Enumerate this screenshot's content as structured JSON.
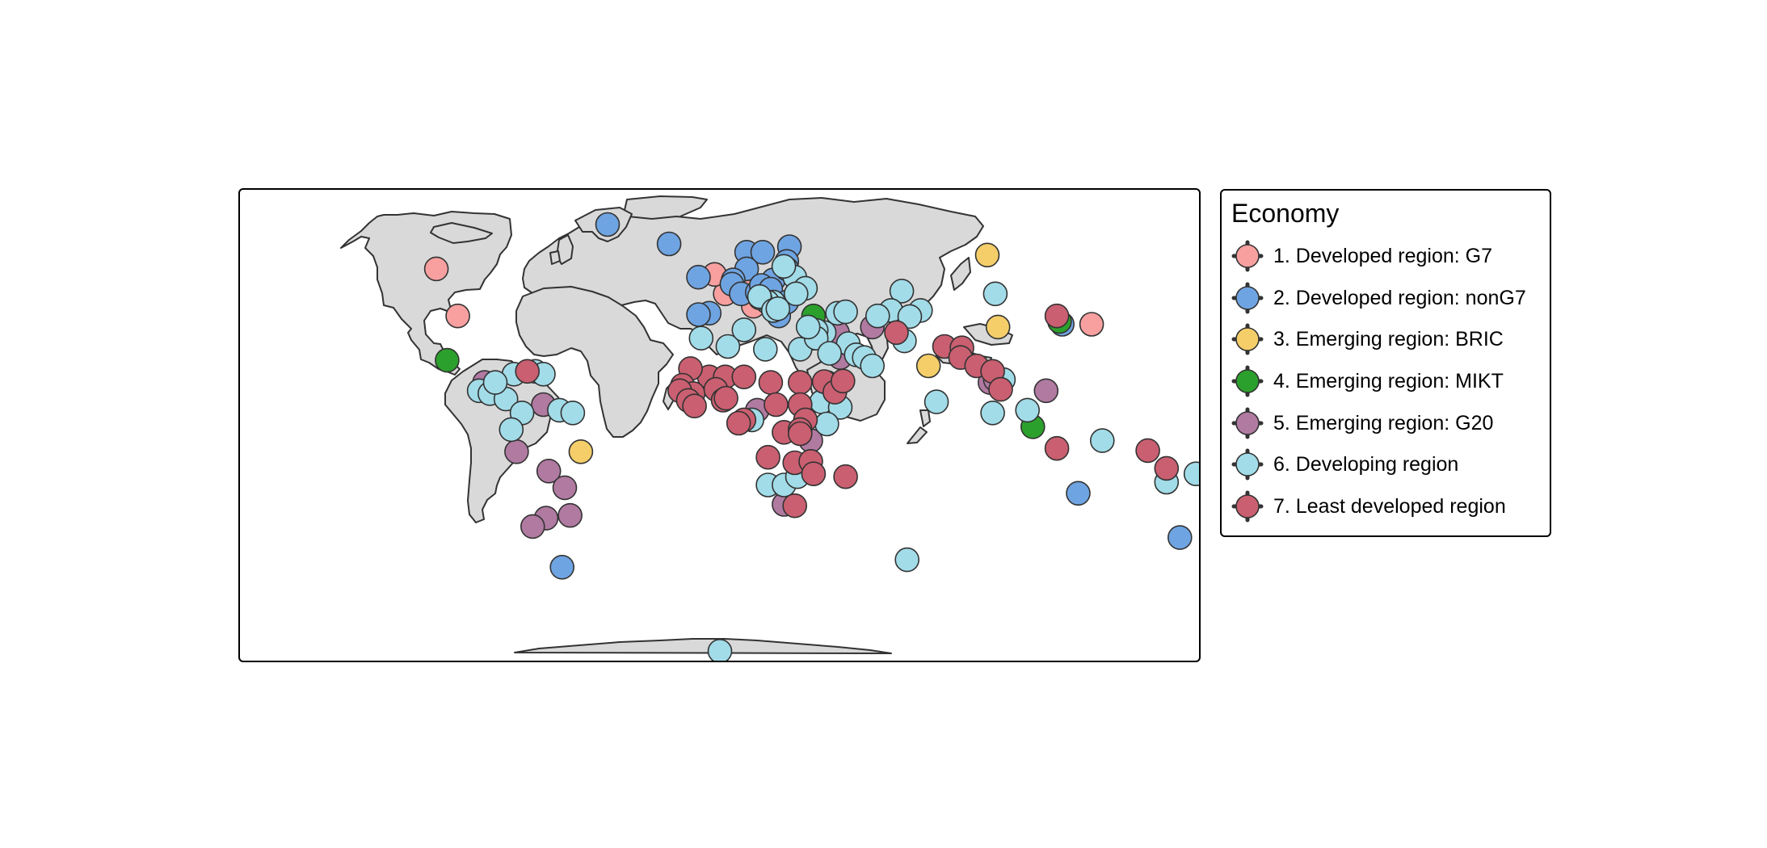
{
  "legend": {
    "title": "Economy",
    "items": [
      {
        "label": "1. Developed region: G7",
        "color": "#F8A0A0"
      },
      {
        "label": "2. Developed region: nonG7",
        "color": "#6FA4E2"
      },
      {
        "label": "3. Emerging region: BRIC",
        "color": "#F5CE6A"
      },
      {
        "label": "4. Emerging region: MIKT",
        "color": "#2CA02C"
      },
      {
        "label": "5. Emerging region: G20",
        "color": "#B07AA1"
      },
      {
        "label": "6. Developing region",
        "color": "#A2DCE8"
      },
      {
        "label": "7. Least developed region",
        "color": "#C95F70"
      }
    ]
  },
  "map_colors": {
    "land": "#D9D9D9",
    "border": "#333333",
    "panel_border": "#000000"
  },
  "points": [
    {
      "lon": -106,
      "lat": 56,
      "economy": 1
    },
    {
      "lon": -98,
      "lat": 39,
      "economy": 1
    },
    {
      "lon": 2,
      "lat": 47,
      "economy": 1
    },
    {
      "lon": 10,
      "lat": 51,
      "economy": 1
    },
    {
      "lon": 12.5,
      "lat": 42.5,
      "economy": 1
    },
    {
      "lon": 139,
      "lat": 36,
      "economy": 1
    },
    {
      "lon": -2,
      "lat": 54,
      "economy": 1
    },
    {
      "lon": -42,
      "lat": 72,
      "economy": 2
    },
    {
      "lon": -19,
      "lat": 65,
      "economy": 2
    },
    {
      "lon": 10,
      "lat": 62,
      "economy": 2
    },
    {
      "lon": 16,
      "lat": 62,
      "economy": 2
    },
    {
      "lon": 26,
      "lat": 64,
      "economy": 2
    },
    {
      "lon": 10,
      "lat": 56,
      "economy": 2
    },
    {
      "lon": -8,
      "lat": 53,
      "economy": 2
    },
    {
      "lon": 5,
      "lat": 52,
      "economy": 2
    },
    {
      "lon": 4.5,
      "lat": 50.5,
      "economy": 2
    },
    {
      "lon": 8,
      "lat": 47,
      "economy": 2
    },
    {
      "lon": 14,
      "lat": 47.5,
      "economy": 2
    },
    {
      "lon": 20,
      "lat": 52,
      "economy": 2
    },
    {
      "lon": 15.5,
      "lat": 50,
      "economy": 2
    },
    {
      "lon": 22,
      "lat": 39,
      "economy": 2
    },
    {
      "lon": -4,
      "lat": 40,
      "economy": 2
    },
    {
      "lon": -8,
      "lat": 39.5,
      "economy": 2
    },
    {
      "lon": 25,
      "lat": 58.7,
      "economy": 2
    },
    {
      "lon": 25,
      "lat": 56,
      "economy": 2
    },
    {
      "lon": 19,
      "lat": 48.7,
      "economy": 2
    },
    {
      "lon": 35,
      "lat": 31,
      "economy": 2
    },
    {
      "lon": 128,
      "lat": 36,
      "economy": 2
    },
    {
      "lon": 134,
      "lat": -25,
      "economy": 2
    },
    {
      "lon": 172,
      "lat": -41,
      "economy": 2
    },
    {
      "lon": -59,
      "lat": -51.7,
      "economy": 2
    },
    {
      "lon": 25,
      "lat": 44,
      "economy": 2
    },
    {
      "lon": 100,
      "lat": 61,
      "economy": 3
    },
    {
      "lon": 104,
      "lat": 35,
      "economy": 3
    },
    {
      "lon": 78,
      "lat": 21,
      "economy": 3
    },
    {
      "lon": -52,
      "lat": -10,
      "economy": 3
    },
    {
      "lon": -102,
      "lat": 23,
      "economy": 4
    },
    {
      "lon": 127,
      "lat": 37,
      "economy": 4
    },
    {
      "lon": 117,
      "lat": -1,
      "economy": 4
    },
    {
      "lon": 35,
      "lat": 39,
      "economy": 4
    },
    {
      "lon": -88,
      "lat": 15,
      "economy": 5
    },
    {
      "lon": -66,
      "lat": 7,
      "economy": 5
    },
    {
      "lon": -76,
      "lat": -10,
      "economy": 5
    },
    {
      "lon": -64,
      "lat": -17,
      "economy": 5
    },
    {
      "lon": -58,
      "lat": -23,
      "economy": 5
    },
    {
      "lon": -65,
      "lat": -34,
      "economy": 5
    },
    {
      "lon": -56,
      "lat": -33,
      "economy": 5
    },
    {
      "lon": -70,
      "lat": -37,
      "economy": 5
    },
    {
      "lon": 45,
      "lat": 24,
      "economy": 5
    },
    {
      "lon": 44,
      "lat": 33,
      "economy": 5
    },
    {
      "lon": 57,
      "lat": 35,
      "economy": 5
    },
    {
      "lon": 101,
      "lat": 15,
      "economy": 5
    },
    {
      "lon": 103,
      "lat": 16,
      "economy": 5
    },
    {
      "lon": 122,
      "lat": 12,
      "economy": 5
    },
    {
      "lon": 34,
      "lat": -6,
      "economy": 5
    },
    {
      "lon": 24,
      "lat": -29,
      "economy": 5
    },
    {
      "lon": 14,
      "lat": 5,
      "economy": 5
    },
    {
      "lon": -90,
      "lat": 12,
      "economy": 6
    },
    {
      "lon": -86,
      "lat": 11,
      "economy": 6
    },
    {
      "lon": -80,
      "lat": 9,
      "economy": 6
    },
    {
      "lon": -74,
      "lat": 4,
      "economy": 6
    },
    {
      "lon": -78,
      "lat": -2,
      "economy": 6
    },
    {
      "lon": -69,
      "lat": 19,
      "economy": 6
    },
    {
      "lon": -60,
      "lat": 5,
      "economy": 6
    },
    {
      "lon": -55,
      "lat": 4,
      "economy": 6
    },
    {
      "lon": -77,
      "lat": 18,
      "economy": 6
    },
    {
      "lon": -66,
      "lat": 18,
      "economy": 6
    },
    {
      "lon": -84,
      "lat": 15,
      "economy": 6
    },
    {
      "lon": 3,
      "lat": 28,
      "economy": 6
    },
    {
      "lon": 9,
      "lat": 34,
      "economy": 6
    },
    {
      "lon": -7,
      "lat": 31,
      "economy": 6
    },
    {
      "lon": 17,
      "lat": 27,
      "economy": 6
    },
    {
      "lon": 30,
      "lat": 27,
      "economy": 6
    },
    {
      "lon": 12,
      "lat": 1.5,
      "economy": 6
    },
    {
      "lon": 38,
      "lat": 8,
      "economy": 6
    },
    {
      "lon": 45,
      "lat": 6,
      "economy": 6
    },
    {
      "lon": 40,
      "lat": 0,
      "economy": 6
    },
    {
      "lon": 18,
      "lat": -22,
      "economy": 6
    },
    {
      "lon": 24,
      "lat": -22,
      "economy": 6
    },
    {
      "lon": 29,
      "lat": -19,
      "economy": 6
    },
    {
      "lon": 40,
      "lat": 15,
      "economy": 6
    },
    {
      "lon": 44,
      "lat": 40,
      "economy": 6
    },
    {
      "lon": 39,
      "lat": 33,
      "economy": 6
    },
    {
      "lon": 36,
      "lat": 33.8,
      "economy": 6
    },
    {
      "lon": 36,
      "lat": 31,
      "economy": 6
    },
    {
      "lon": 48,
      "lat": 29,
      "economy": 6
    },
    {
      "lon": 51,
      "lat": 25,
      "economy": 6
    },
    {
      "lon": 54,
      "lat": 24,
      "economy": 6
    },
    {
      "lon": 57,
      "lat": 21,
      "economy": 6
    },
    {
      "lon": 68,
      "lat": 48,
      "economy": 6
    },
    {
      "lon": 64,
      "lat": 41,
      "economy": 6
    },
    {
      "lon": 59,
      "lat": 39,
      "economy": 6
    },
    {
      "lon": 75,
      "lat": 41,
      "economy": 6
    },
    {
      "lon": 71,
      "lat": 38.8,
      "economy": 6
    },
    {
      "lon": 69,
      "lat": 30,
      "economy": 6
    },
    {
      "lon": 103,
      "lat": 47,
      "economy": 6
    },
    {
      "lon": 81,
      "lat": 8,
      "economy": 6
    },
    {
      "lon": 102,
      "lat": 4,
      "economy": 6
    },
    {
      "lon": 106,
      "lat": 16,
      "economy": 6
    },
    {
      "lon": 115,
      "lat": 5,
      "economy": 6
    },
    {
      "lon": 143,
      "lat": -6,
      "economy": 6
    },
    {
      "lon": 167,
      "lat": -21,
      "economy": 6
    },
    {
      "lon": 178,
      "lat": -18,
      "economy": 6
    },
    {
      "lon": 70,
      "lat": -49,
      "economy": 6
    },
    {
      "lon": 0,
      "lat": -82,
      "economy": 6
    },
    {
      "lon": 28,
      "lat": 53,
      "economy": 6
    },
    {
      "lon": 32,
      "lat": 49,
      "economy": 6
    },
    {
      "lon": 28.5,
      "lat": 47,
      "economy": 6
    },
    {
      "lon": 20,
      "lat": 44,
      "economy": 6
    },
    {
      "lon": 17.8,
      "lat": 44,
      "economy": 6
    },
    {
      "lon": 15,
      "lat": 45.5,
      "economy": 6
    },
    {
      "lon": 14.8,
      "lat": 46,
      "economy": 6
    },
    {
      "lon": 20,
      "lat": 41,
      "economy": 6
    },
    {
      "lon": 21.7,
      "lat": 41.6,
      "economy": 6
    },
    {
      "lon": 33,
      "lat": 35,
      "economy": 6
    },
    {
      "lon": 23.9,
      "lat": 56.9,
      "economy": 6
    },
    {
      "lon": 47,
      "lat": 40.5,
      "economy": 6
    },
    {
      "lon": 41,
      "lat": 25.5,
      "economy": 6
    },
    {
      "lon": -72,
      "lat": 19,
      "economy": 7
    },
    {
      "lon": -4,
      "lat": 17,
      "economy": 7
    },
    {
      "lon": 2,
      "lat": 17,
      "economy": 7
    },
    {
      "lon": 9,
      "lat": 17,
      "economy": 7
    },
    {
      "lon": -11,
      "lat": 20,
      "economy": 7
    },
    {
      "lon": -14,
      "lat": 14,
      "economy": 7
    },
    {
      "lon": -10,
      "lat": 11,
      "economy": 7
    },
    {
      "lon": -15,
      "lat": 12,
      "economy": 7
    },
    {
      "lon": -11.8,
      "lat": 8.5,
      "economy": 7
    },
    {
      "lon": -9.5,
      "lat": 6.5,
      "economy": 7
    },
    {
      "lon": -1.5,
      "lat": 12.5,
      "economy": 7
    },
    {
      "lon": 1.2,
      "lat": 8.6,
      "economy": 7
    },
    {
      "lon": 2.3,
      "lat": 9.3,
      "economy": 7
    },
    {
      "lon": 19,
      "lat": 15,
      "economy": 7
    },
    {
      "lon": 30,
      "lat": 15,
      "economy": 7
    },
    {
      "lon": 30,
      "lat": 7,
      "economy": 7
    },
    {
      "lon": 21,
      "lat": 7,
      "economy": 7
    },
    {
      "lon": 39,
      "lat": 15.3,
      "economy": 7
    },
    {
      "lon": 43,
      "lat": 11.5,
      "economy": 7
    },
    {
      "lon": 46,
      "lat": 15.5,
      "economy": 7
    },
    {
      "lon": 32,
      "lat": 1.5,
      "economy": 7
    },
    {
      "lon": 24,
      "lat": -3,
      "economy": 7
    },
    {
      "lon": 30,
      "lat": -2,
      "economy": 7
    },
    {
      "lon": 30,
      "lat": -3.5,
      "economy": 7
    },
    {
      "lon": 18,
      "lat": -12,
      "economy": 7
    },
    {
      "lon": 28,
      "lat": -14,
      "economy": 7
    },
    {
      "lon": 34,
      "lat": -13.5,
      "economy": 7
    },
    {
      "lon": 35,
      "lat": -18,
      "economy": 7
    },
    {
      "lon": 47,
      "lat": -19,
      "economy": 7
    },
    {
      "lon": 28,
      "lat": -29.5,
      "economy": 7
    },
    {
      "lon": 9,
      "lat": 1.5,
      "economy": 7
    },
    {
      "lon": 7,
      "lat": 0.3,
      "economy": 7
    },
    {
      "lon": 66,
      "lat": 33,
      "economy": 7
    },
    {
      "lon": 84,
      "lat": 28,
      "economy": 7
    },
    {
      "lon": 90.5,
      "lat": 27.5,
      "economy": 7
    },
    {
      "lon": 90,
      "lat": 24,
      "economy": 7
    },
    {
      "lon": 96,
      "lat": 21,
      "economy": 7
    },
    {
      "lon": 102,
      "lat": 19,
      "economy": 7
    },
    {
      "lon": 105,
      "lat": 12.5,
      "economy": 7
    },
    {
      "lon": 126,
      "lat": 39,
      "economy": 7
    },
    {
      "lon": 126,
      "lat": -8.8,
      "economy": 7
    },
    {
      "lon": 160,
      "lat": -9.6,
      "economy": 7
    },
    {
      "lon": 167,
      "lat": -16,
      "economy": 7
    }
  ]
}
